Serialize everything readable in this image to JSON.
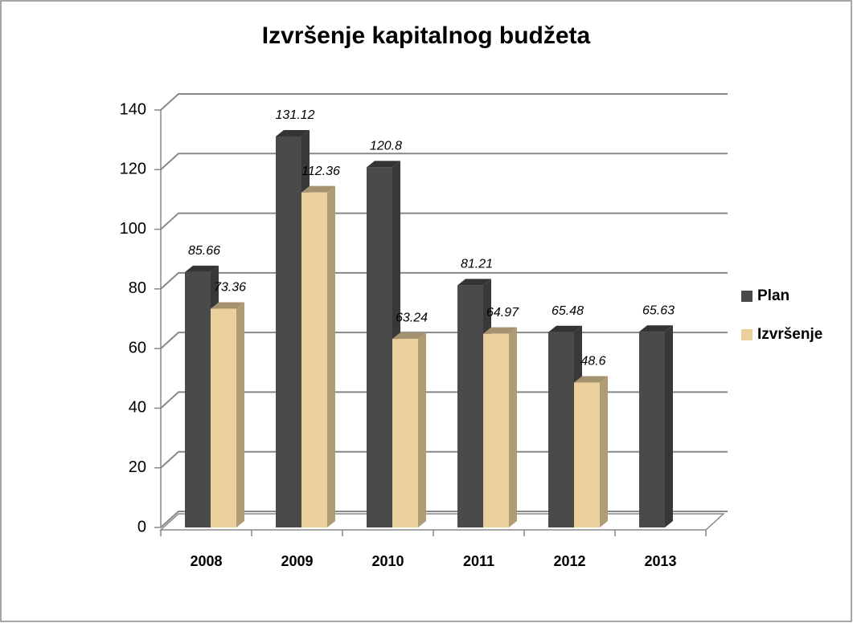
{
  "chart_data": {
    "type": "bar3d",
    "title": "Izvršenje kapitalnog budžeta",
    "categories": [
      "2008",
      "2009",
      "2010",
      "2011",
      "2012",
      "2013"
    ],
    "series": [
      {
        "name": "Plan",
        "color": "#4a4a4a",
        "values": [
          85.66,
          131.12,
          120.8,
          81.21,
          65.48,
          65.63
        ]
      },
      {
        "name": "Izvršenje",
        "color": "#e9d09c",
        "values": [
          73.36,
          112.36,
          63.24,
          64.97,
          48.6,
          null
        ]
      }
    ],
    "ylim": [
      0,
      140
    ],
    "yticks": [
      0,
      20,
      40,
      60,
      80,
      100,
      120,
      140
    ],
    "grid": true,
    "legend": "right"
  }
}
